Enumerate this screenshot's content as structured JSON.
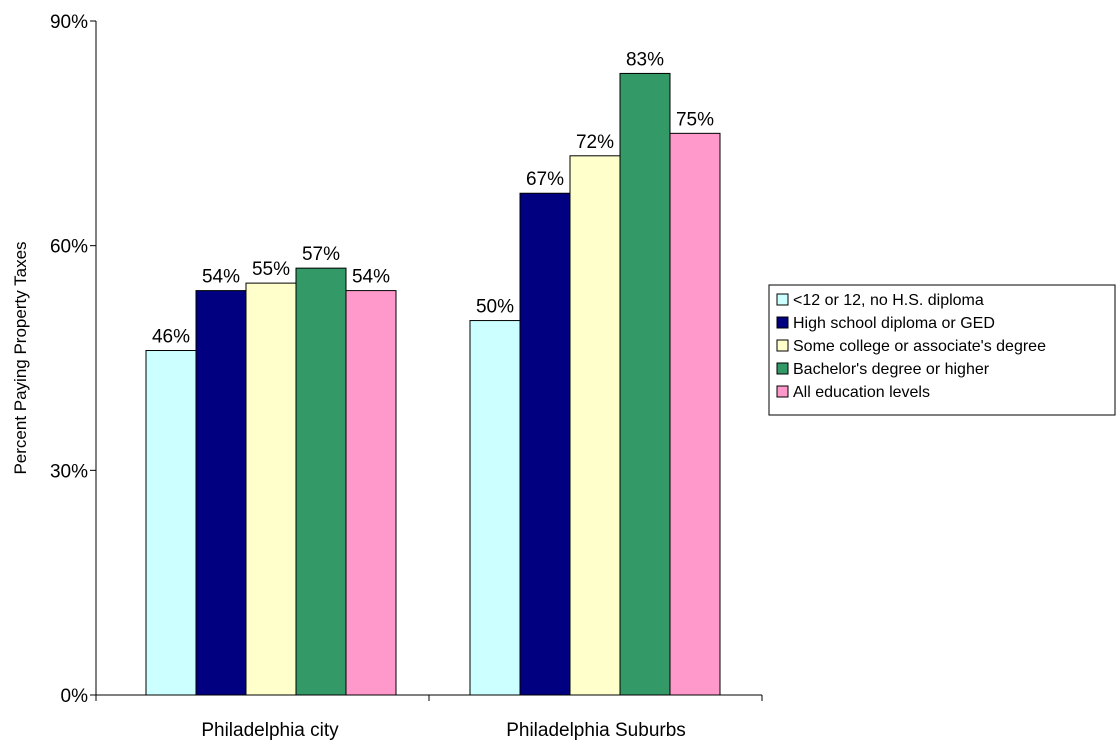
{
  "chart_data": {
    "type": "bar",
    "title": "",
    "xlabel": "",
    "ylabel": "Percent Paying Property Taxes",
    "ylim": [
      0,
      90
    ],
    "yticks": [
      0,
      30,
      60,
      90
    ],
    "ytick_labels": [
      "0%",
      "30%",
      "60%",
      "90%"
    ],
    "grid": false,
    "legend_position": "right",
    "categories": [
      "Philadelphia city",
      "Philadelphia Suburbs"
    ],
    "series": [
      {
        "name": "<12 or 12, no H.S. diploma",
        "values": [
          46,
          50
        ],
        "labels": [
          "46%",
          "50%"
        ],
        "color": "#CCFFFF"
      },
      {
        "name": "High school diploma or GED",
        "values": [
          54,
          67
        ],
        "labels": [
          "54%",
          "67%"
        ],
        "color": "#000080"
      },
      {
        "name": "Some college or associate's degree",
        "values": [
          55,
          72
        ],
        "labels": [
          "55%",
          "72%"
        ],
        "color": "#FFFFCC"
      },
      {
        "name": "Bachelor's degree or higher",
        "values": [
          57,
          83
        ],
        "labels": [
          "57%",
          "83%"
        ],
        "color": "#339966"
      },
      {
        "name": "All education levels",
        "values": [
          54,
          75
        ],
        "labels": [
          "54%",
          "75%"
        ],
        "color": "#FF99CC"
      }
    ]
  }
}
